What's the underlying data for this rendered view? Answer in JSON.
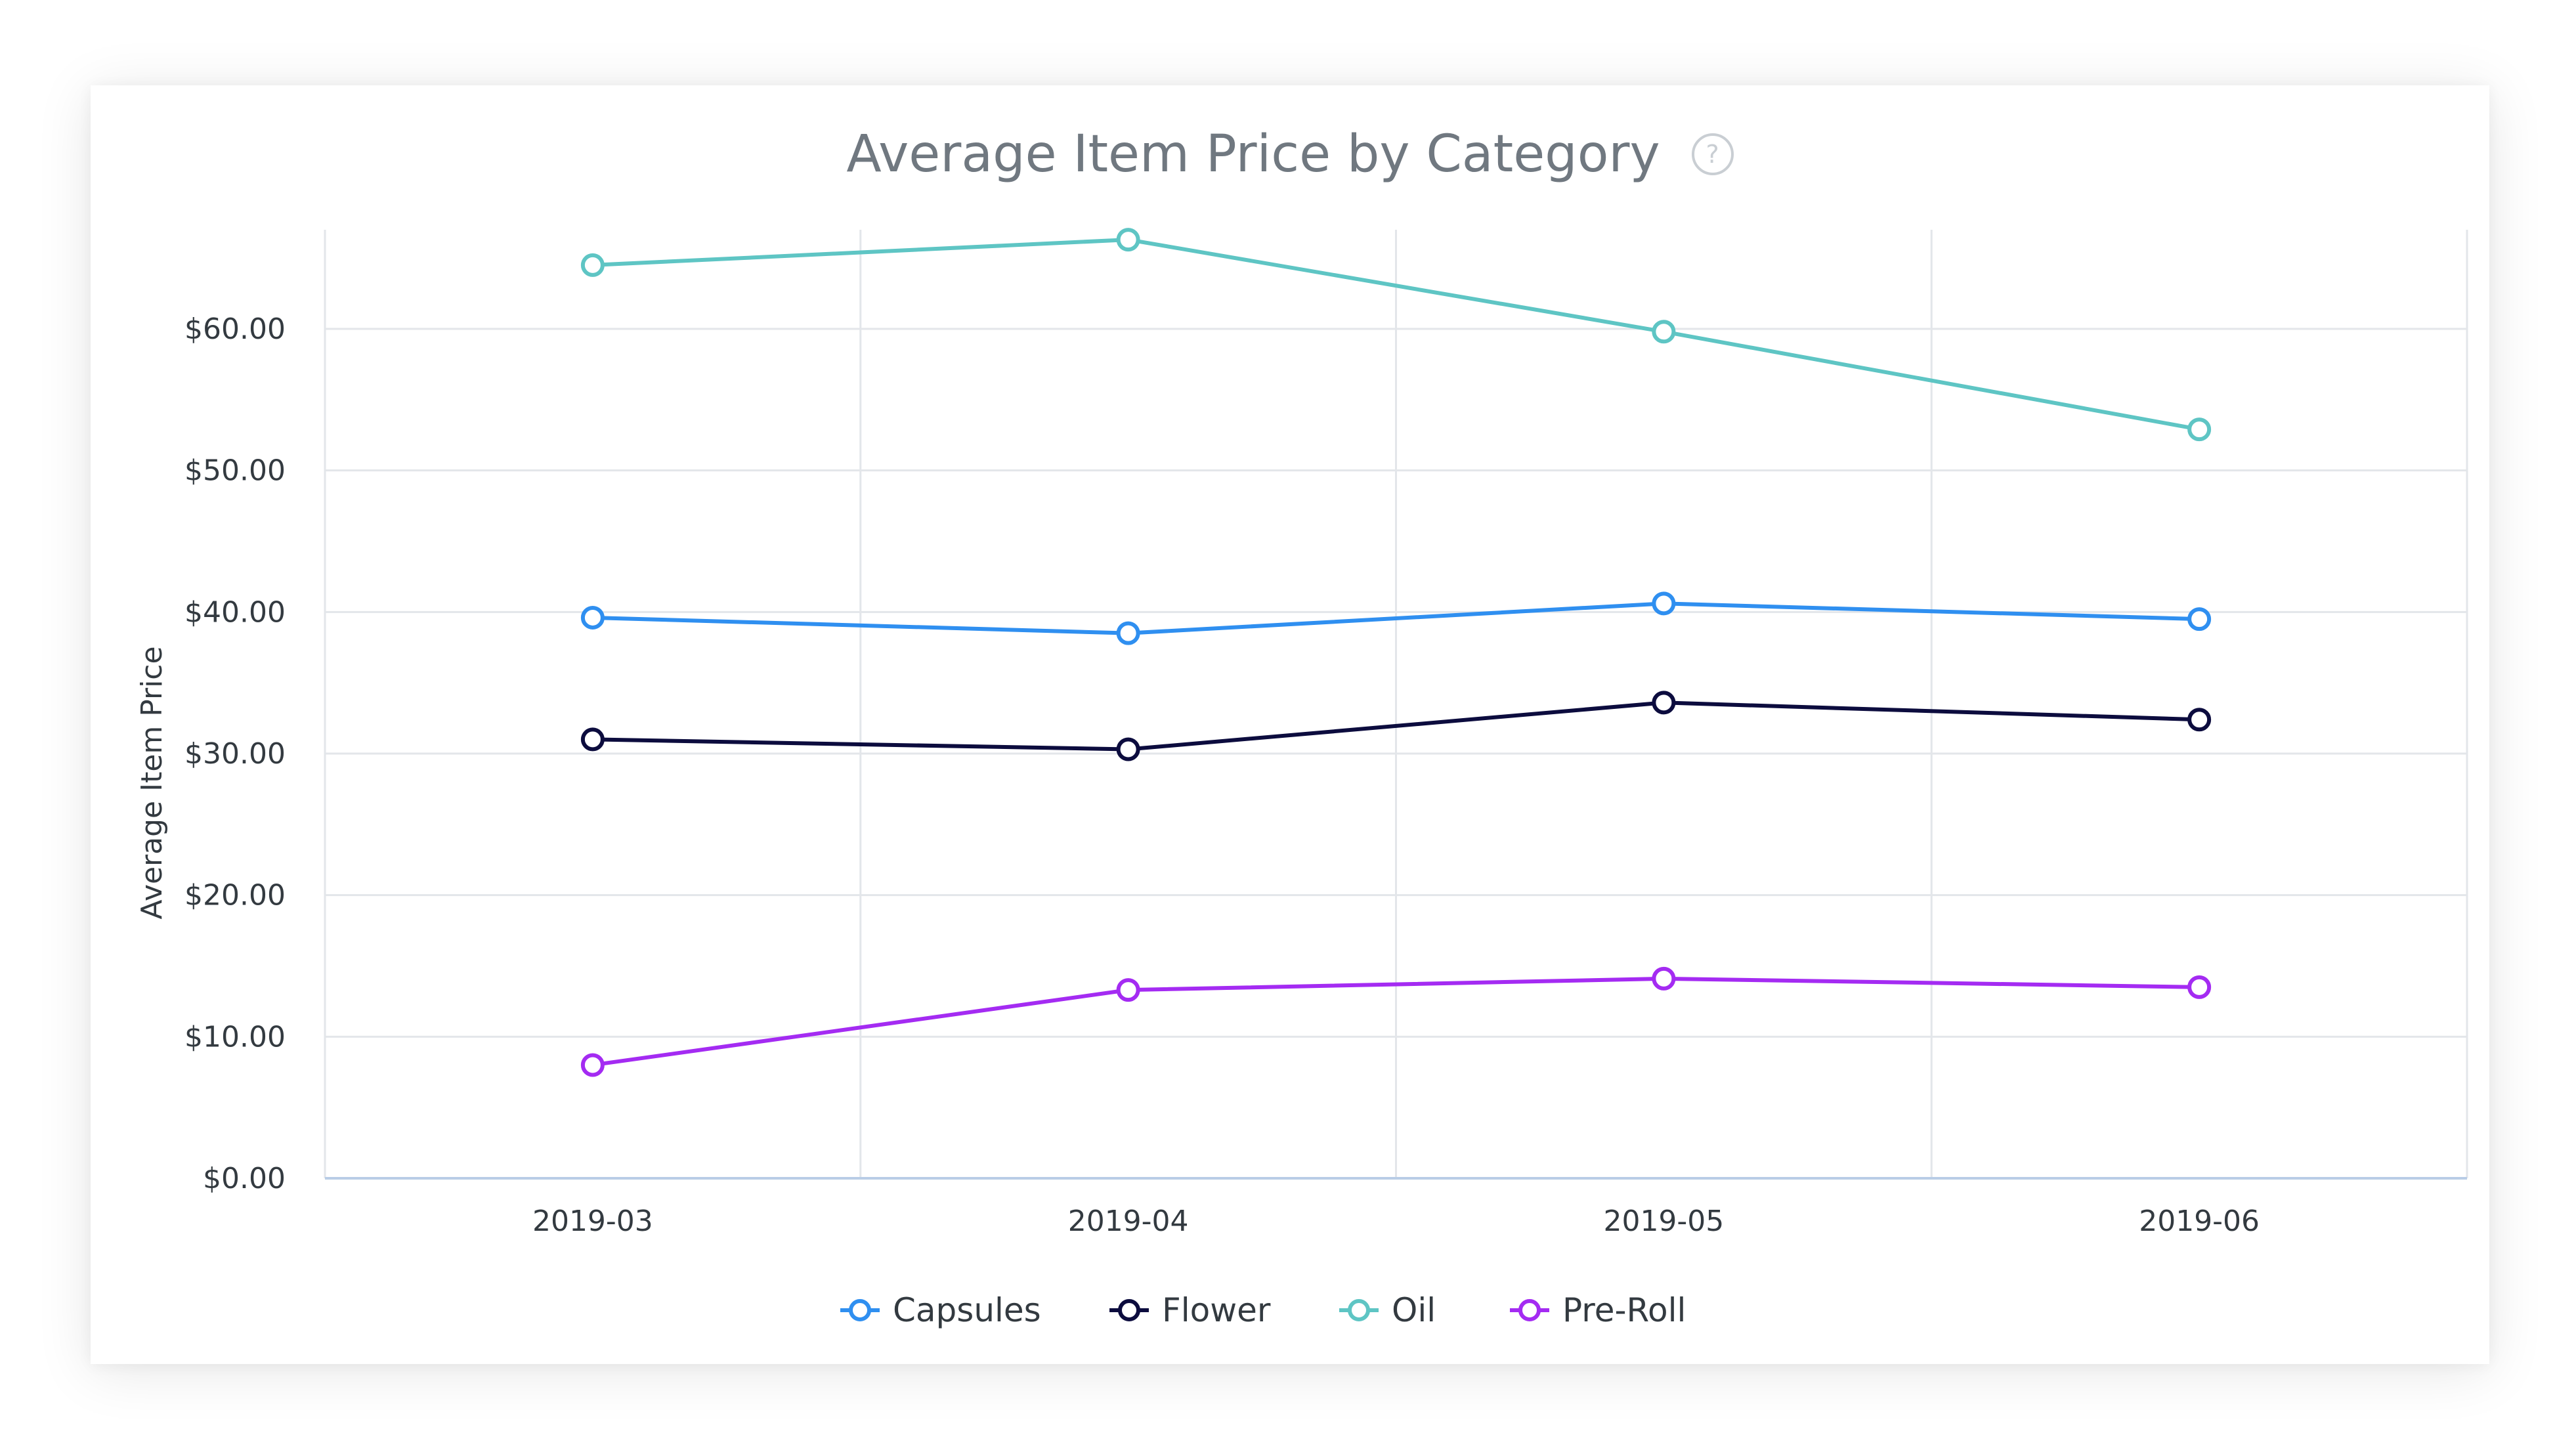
{
  "chart_data": {
    "type": "line",
    "title": "Average Item Price by Category",
    "help_icon": "question-circle-icon",
    "ylabel": "Average Item Price",
    "xlabel": "",
    "categories": [
      "2019-03",
      "2019-04",
      "2019-05",
      "2019-06"
    ],
    "y_ticks": [
      "$0.00",
      "$10.00",
      "$20.00",
      "$30.00",
      "$40.00",
      "$50.00",
      "$60.00"
    ],
    "ylim": [
      0,
      67
    ],
    "grid": true,
    "legend_position": "bottom",
    "series": [
      {
        "name": "Capsules",
        "color": "#2f8ff0",
        "values": [
          39.6,
          38.5,
          40.6,
          39.5
        ]
      },
      {
        "name": "Flower",
        "color": "#0c0c3e",
        "values": [
          31.0,
          30.3,
          33.6,
          32.4
        ]
      },
      {
        "name": "Oil",
        "color": "#5ec5c4",
        "values": [
          64.5,
          66.3,
          59.8,
          52.9
        ]
      },
      {
        "name": "Pre-Roll",
        "color": "#a42bf2",
        "values": [
          8.0,
          13.3,
          14.1,
          13.5
        ]
      }
    ]
  }
}
